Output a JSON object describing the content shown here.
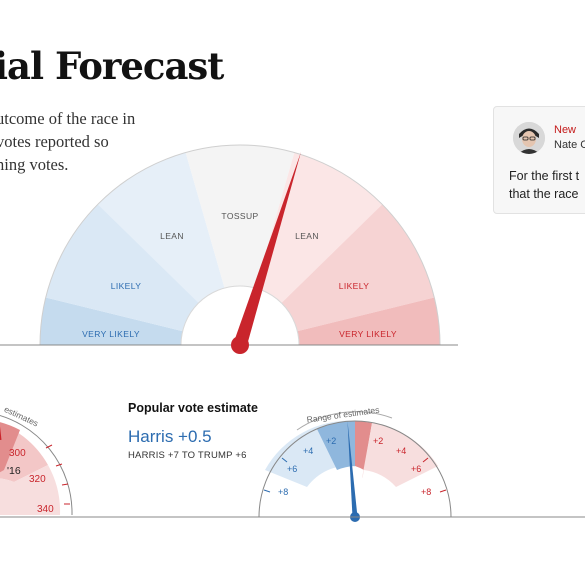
{
  "header": {
    "title": "ial Forecast",
    "intro_lines": [
      "utcome of the race in",
      "votes reported so",
      "ning votes."
    ]
  },
  "main_gauge": {
    "zones": {
      "lean_left": "LEAN",
      "likely_left": "LIKELY",
      "very_likely_left": "VERY LIKELY",
      "tossup": "TOSSUP",
      "lean_right": "LEAN",
      "likely_right": "LIKELY",
      "very_likely_right": "VERY LIKELY"
    },
    "needle_side": "lean Trump"
  },
  "card": {
    "badge": "New",
    "author": "Nate C",
    "text_lines": [
      "For the first t",
      "that the race"
    ]
  },
  "electoral_gauge": {
    "arc_label": "estimates",
    "ticks": [
      "300",
      "320",
      "340"
    ],
    "marker": "'16"
  },
  "popular_vote": {
    "title": "Popular vote estimate",
    "value": "Harris +0.5",
    "range": "HARRIS +7 TO TRUMP +6",
    "arc_label": "Range of estimates",
    "ticks_left": [
      "+2",
      "+4",
      "+6",
      "+8"
    ],
    "ticks_right": [
      "+2",
      "+4",
      "+6",
      "+8"
    ]
  },
  "colors": {
    "dem_blue": "#2c6cb0",
    "rep_red": "#c9252c",
    "needle": "#c9252c"
  }
}
